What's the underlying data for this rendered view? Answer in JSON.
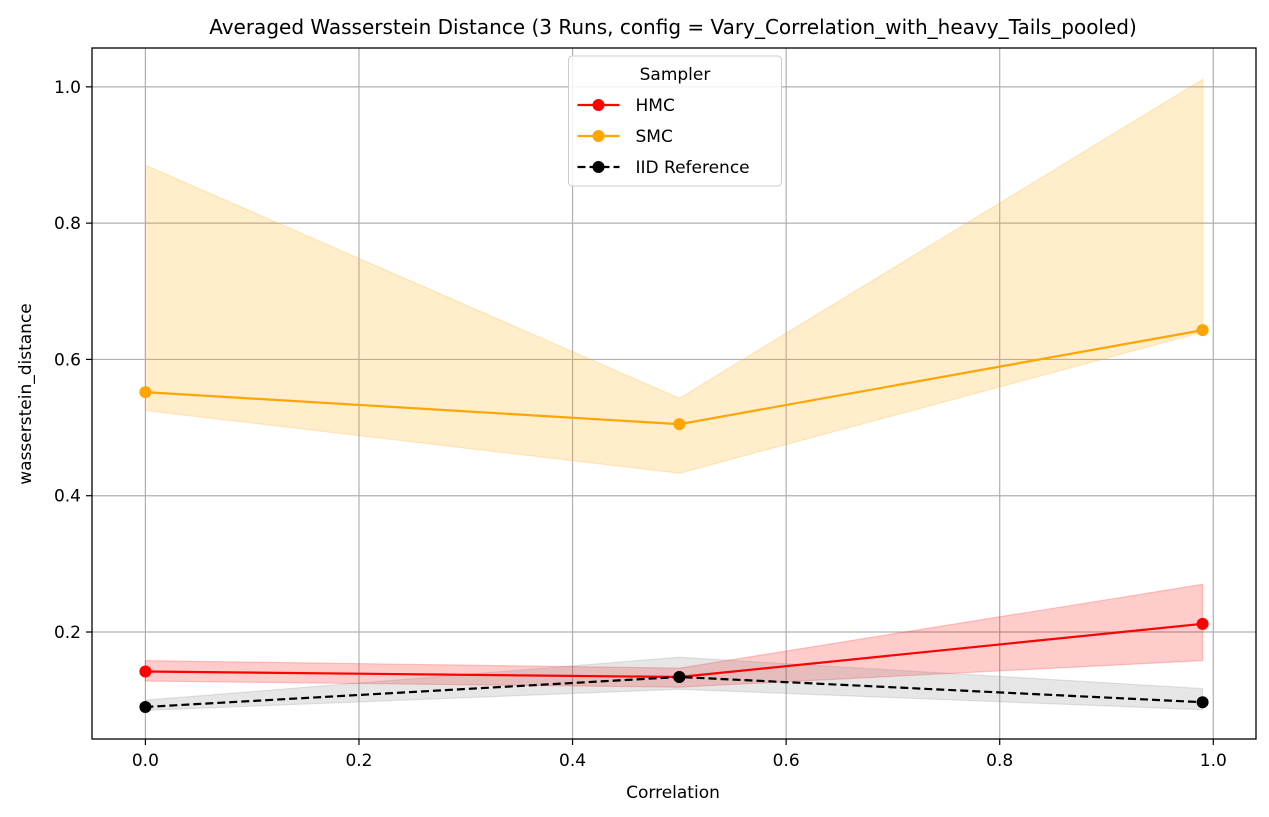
{
  "chart_data": {
    "type": "line",
    "title": "Averaged Wasserstein Distance (3 Runs, config = Vary_Correlation_with_heavy_Tails_pooled)",
    "xlabel": "Correlation",
    "ylabel": "wasserstein_distance",
    "xlim": [
      -0.05,
      1.04
    ],
    "ylim": [
      0.043,
      1.057
    ],
    "xticks": [
      0.0,
      0.2,
      0.4,
      0.6,
      0.8,
      1.0
    ],
    "xtick_labels": [
      "0.0",
      "0.2",
      "0.4",
      "0.6",
      "0.8",
      "1.0"
    ],
    "yticks": [
      0.2,
      0.4,
      0.6,
      0.8,
      1.0
    ],
    "ytick_labels": [
      "0.2",
      "0.4",
      "0.6",
      "0.8",
      "1.0"
    ],
    "grid": true,
    "legend": {
      "title": "Sampler",
      "placement": "upper center"
    },
    "x": [
      0.0,
      0.5,
      0.99
    ],
    "series": [
      {
        "name": "HMC",
        "color": "#ff0000",
        "band_color": "#ff0000",
        "line_style": "solid",
        "values": [
          0.142,
          0.134,
          0.212
        ],
        "band_lower": [
          0.128,
          0.119,
          0.158
        ],
        "band_upper": [
          0.158,
          0.147,
          0.27
        ]
      },
      {
        "name": "SMC",
        "color": "#ffa500",
        "band_color": "#ffa500",
        "line_style": "solid",
        "values": [
          0.552,
          0.505,
          0.643
        ],
        "band_lower": [
          0.525,
          0.433,
          0.64
        ],
        "band_upper": [
          0.885,
          0.543,
          1.011
        ]
      },
      {
        "name": "IID Reference",
        "color": "#000000",
        "band_color": "#808080",
        "line_style": "dashed",
        "values": [
          0.09,
          0.134,
          0.097
        ],
        "band_lower": [
          0.085,
          0.116,
          0.086
        ],
        "band_upper": [
          0.1,
          0.163,
          0.117
        ]
      }
    ]
  }
}
